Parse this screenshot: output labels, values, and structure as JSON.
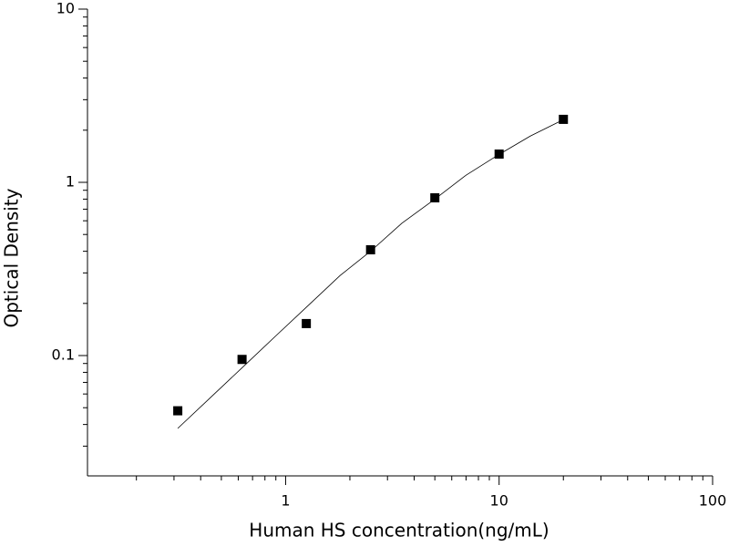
{
  "chart_data": {
    "type": "scatter",
    "x_label": "Human HS concentration(ng/mL)",
    "y_label": "Optical Density",
    "x": [
      0.3125,
      0.625,
      1.25,
      2.5,
      5,
      10,
      20
    ],
    "values": [
      0.048,
      0.095,
      0.153,
      0.408,
      0.814,
      1.456,
      2.31
    ],
    "color": "#000000",
    "fit": {
      "x": [
        0.3125,
        0.45,
        0.625,
        0.9,
        1.25,
        1.8,
        2.5,
        3.5,
        5,
        7,
        10,
        14,
        20
      ],
      "values": [
        0.038,
        0.058,
        0.085,
        0.13,
        0.19,
        0.29,
        0.4,
        0.58,
        0.8,
        1.1,
        1.45,
        1.85,
        2.3
      ]
    },
    "x_log": true,
    "y_log": true,
    "xlim": [
      0.118,
      100
    ],
    "ylim": [
      0.0202,
      10
    ],
    "xticks": [
      1,
      10,
      100
    ],
    "yticks": [
      0.1,
      1,
      10
    ],
    "x_minor_ticks": [
      0.2,
      0.3,
      0.4,
      0.5,
      0.6,
      0.7,
      0.8,
      0.9,
      2,
      3,
      4,
      5,
      6,
      7,
      8,
      9,
      20,
      30,
      40,
      50,
      60,
      70,
      80,
      90
    ],
    "y_minor_ticks": [
      0.03,
      0.04,
      0.05,
      0.06,
      0.07,
      0.08,
      0.09,
      0.2,
      0.3,
      0.4,
      0.5,
      0.6,
      0.7,
      0.8,
      0.9,
      2,
      3,
      4,
      5,
      6,
      7,
      8,
      9
    ]
  }
}
